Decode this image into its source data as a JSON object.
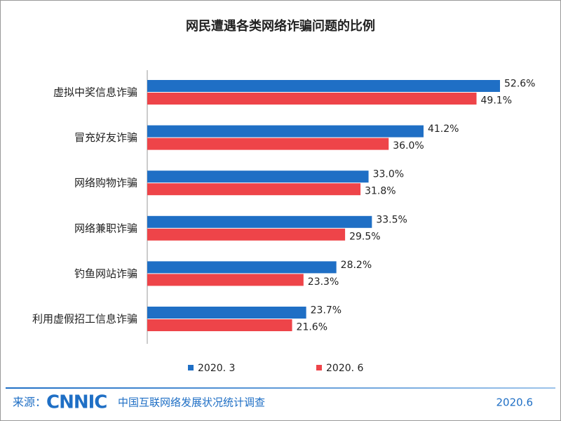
{
  "chart_data": {
    "type": "bar",
    "orientation": "horizontal",
    "title": "网民遭遇各类网络诈骗问题的比例",
    "categories": [
      "虚拟中奖信息诈骗",
      "冒充好友诈骗",
      "网络购物诈骗",
      "网络兼职诈骗",
      "钓鱼网站诈骗",
      "利用虚假招工信息诈骗"
    ],
    "series": [
      {
        "name": "2020. 3",
        "color": "#1f6fc5",
        "values": [
          52.6,
          41.2,
          33.0,
          33.5,
          28.2,
          23.7
        ],
        "value_labels": [
          "52.6%",
          "41.2%",
          "33.0%",
          "33.5%",
          "28.2%",
          "23.7%"
        ]
      },
      {
        "name": "2020. 6",
        "color": "#ee4449",
        "values": [
          49.1,
          36.0,
          31.8,
          29.5,
          23.3,
          21.6
        ],
        "value_labels": [
          "49.1%",
          "36.0%",
          "31.8%",
          "29.5%",
          "23.3%",
          "21.6%"
        ]
      }
    ]
  },
  "footer": {
    "source_label": "来源：",
    "logo": "CNNIC",
    "org": "中国互联网络发展状况统计调查",
    "date": "2020.6"
  }
}
